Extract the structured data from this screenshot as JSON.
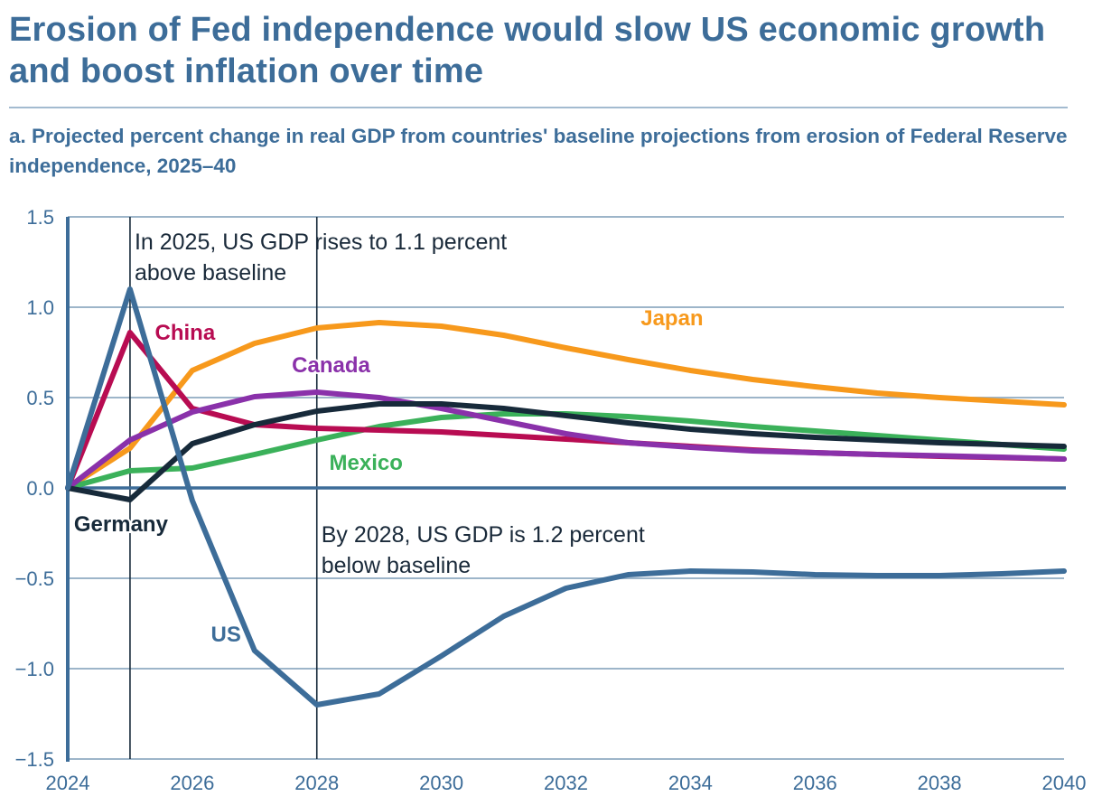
{
  "header": {
    "title": "Erosion of Fed independence would slow US economic growth and boost inflation over time",
    "subtitle": "a. Projected percent change in real GDP from countries' baseline projections from erosion of Federal Reserve independence, 2025–40"
  },
  "chart_data": {
    "type": "line",
    "title": "Erosion of Fed independence would slow US economic growth and boost inflation over time",
    "subtitle": "a. Projected percent change in real GDP from countries' baseline projections from erosion of Federal Reserve independence, 2025–40",
    "xlabel": "",
    "ylabel": "",
    "xlim": [
      2024,
      2040
    ],
    "ylim": [
      -1.5,
      1.5
    ],
    "grid": true,
    "legend": "inline labels",
    "x": [
      2024,
      2025,
      2026,
      2027,
      2028,
      2029,
      2030,
      2031,
      2032,
      2033,
      2034,
      2035,
      2036,
      2037,
      2038,
      2039,
      2040
    ],
    "x_ticks": [
      2024,
      2026,
      2028,
      2030,
      2032,
      2034,
      2036,
      2038,
      2040
    ],
    "x_tick_labels": [
      "2024",
      "2026",
      "2028",
      "2030",
      "2032",
      "2034",
      "2036",
      "2038",
      "2040"
    ],
    "y_ticks": [
      1.5,
      1.0,
      0.5,
      0.0,
      -0.5,
      -1.0,
      -1.5
    ],
    "y_tick_labels": [
      "1.5",
      "1.0",
      "0.5",
      "0.0",
      "−0.5",
      "−1.0",
      "−1.5"
    ],
    "series": [
      {
        "name": "Japan",
        "color": "#f7991c",
        "values": [
          0,
          0.22,
          0.65,
          0.8,
          0.885,
          0.915,
          0.895,
          0.845,
          0.775,
          0.71,
          0.65,
          0.6,
          0.56,
          0.525,
          0.5,
          0.48,
          0.46
        ]
      },
      {
        "name": "Mexico",
        "color": "#3bb15a",
        "values": [
          0,
          0.095,
          0.11,
          0.185,
          0.265,
          0.34,
          0.39,
          0.41,
          0.41,
          0.395,
          0.37,
          0.34,
          0.315,
          0.29,
          0.265,
          0.24,
          0.215
        ]
      },
      {
        "name": "China",
        "color": "#b80c52",
        "values": [
          0,
          0.86,
          0.44,
          0.35,
          0.33,
          0.32,
          0.31,
          0.29,
          0.27,
          0.25,
          0.23,
          0.21,
          0.195,
          0.185,
          0.175,
          0.168,
          0.16
        ]
      },
      {
        "name": "Canada",
        "color": "#8a31aa",
        "values": [
          0,
          0.265,
          0.42,
          0.505,
          0.53,
          0.5,
          0.44,
          0.37,
          0.3,
          0.25,
          0.225,
          0.205,
          0.195,
          0.185,
          0.178,
          0.17,
          0.16
        ]
      },
      {
        "name": "Germany",
        "color": "#172a3a",
        "values": [
          0,
          -0.065,
          0.245,
          0.35,
          0.425,
          0.465,
          0.465,
          0.44,
          0.4,
          0.36,
          0.325,
          0.3,
          0.28,
          0.265,
          0.25,
          0.24,
          0.23
        ]
      },
      {
        "name": "US",
        "color": "#3d6d99",
        "values": [
          0,
          1.1,
          -0.07,
          -0.9,
          -1.2,
          -1.14,
          -0.93,
          -0.71,
          -0.555,
          -0.48,
          -0.46,
          -0.465,
          -0.48,
          -0.485,
          -0.485,
          -0.475,
          -0.46
        ]
      }
    ],
    "series_labels": [
      {
        "name": "Japan",
        "text": "Japan",
        "x": 2033.2,
        "y": 0.9
      },
      {
        "name": "Canada",
        "text": "Canada",
        "x": 2027.6,
        "y": 0.64
      },
      {
        "name": "China",
        "text": "China",
        "x": 2025.4,
        "y": 0.82
      },
      {
        "name": "Mexico",
        "text": "Mexico",
        "x": 2028.2,
        "y": 0.1
      },
      {
        "name": "Germany",
        "text": "Germany",
        "x": 2024.1,
        "y": -0.24
      },
      {
        "name": "US",
        "text": "US",
        "x": 2026.3,
        "y": -0.85
      }
    ],
    "reference_lines": [
      2025,
      2028
    ],
    "annotations": [
      {
        "year": 2025,
        "lines": [
          "In 2025, US GDP rises to 1.1 percent",
          "above baseline"
        ],
        "y": 1.32
      },
      {
        "year": 2028,
        "lines": [
          "By 2028, US GDP is 1.2 percent",
          "below baseline"
        ],
        "y": -0.3
      }
    ]
  }
}
